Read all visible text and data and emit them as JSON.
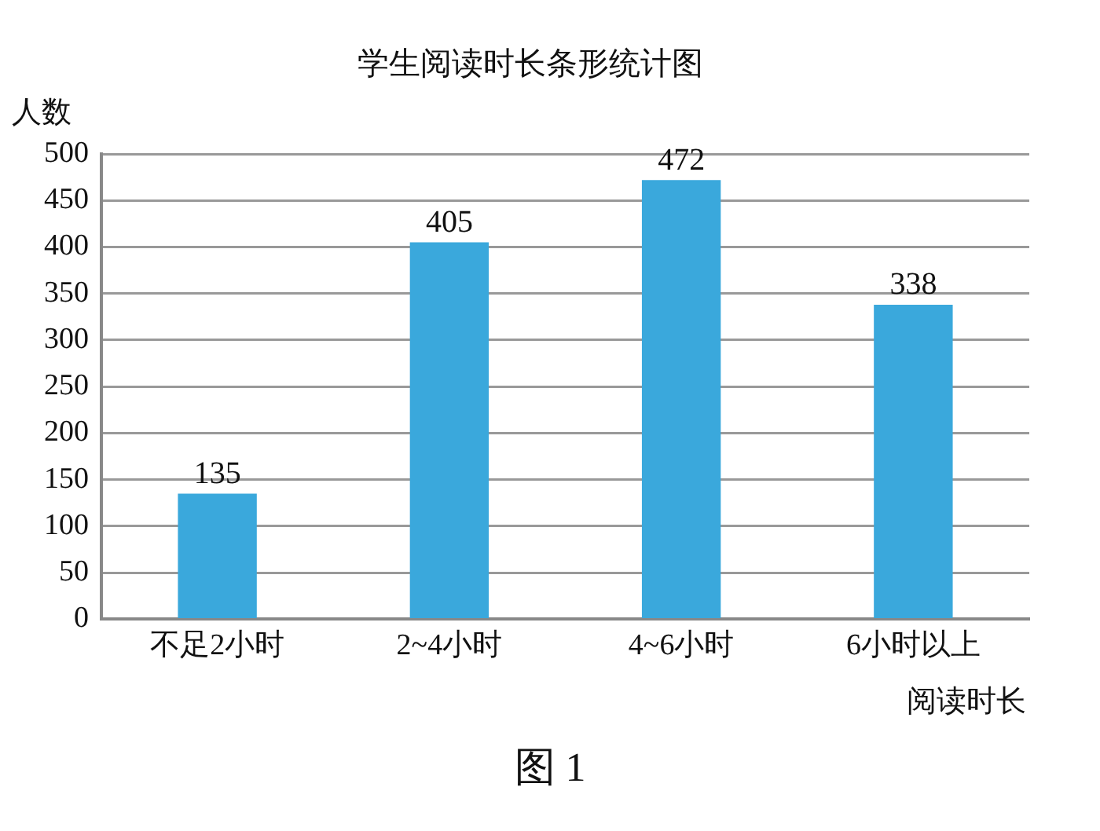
{
  "chart_data": {
    "type": "bar",
    "title": "学生阅读时长条形统计图",
    "ylabel": "人数",
    "xlabel": "阅读时长",
    "annotations": [
      "图 1"
    ],
    "categories": [
      "不足2小时",
      "2~4小时",
      "4~6小时",
      "6小时以上"
    ],
    "values": [
      135,
      405,
      472,
      338
    ],
    "color": "#3aa8dc",
    "ylim": [
      0,
      500
    ],
    "yticks": [
      0,
      50,
      100,
      150,
      200,
      250,
      300,
      350,
      400,
      450,
      500
    ],
    "grid": "y",
    "data_labels": true
  }
}
